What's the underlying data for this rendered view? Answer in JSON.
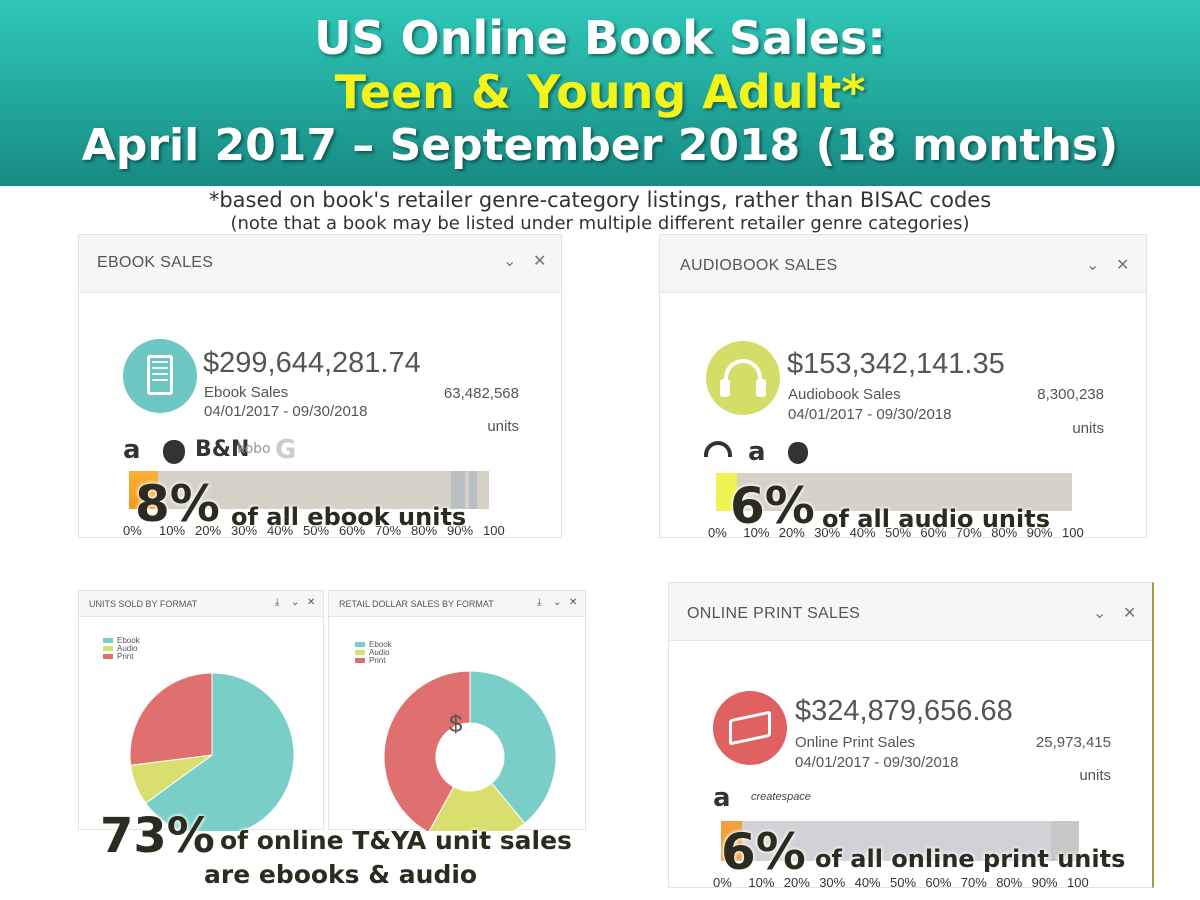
{
  "header": {
    "line1": "US Online Book Sales:",
    "line2": "Teen & Young Adult*",
    "line3": "April 2017 – September 2018 (18 months)",
    "note1": "*based on book's retailer genre-category listings, rather than BISAC codes",
    "note2": "(note that a book may be listed under multiple different retailer genre categories)"
  },
  "colors": {
    "ebook": "#79cec8",
    "audio": "#d9de6f",
    "print": "#e06f6f",
    "accent_yellow": "#f5f41a",
    "banner": "#21a79c"
  },
  "ebook": {
    "title": "EBOOK SALES",
    "amount": "$299,644,281.74",
    "label": "Ebook Sales",
    "dates": "04/01/2017 - 09/30/2018",
    "units": "63,482,568",
    "units_label": "units",
    "retailers": [
      "a",
      "",
      "B&N",
      "kobo",
      "G"
    ],
    "retailer_icons": [
      "amazon-icon",
      "apple-icon",
      "bn-icon",
      "kobo-icon",
      "google-icon"
    ],
    "share_pct": 8,
    "share_text": "of all ebook units",
    "share_big": "8%"
  },
  "audio": {
    "title": "AUDIOBOOK SALES",
    "amount": "$153,342,141.35",
    "label": "Audiobook Sales",
    "dates": "04/01/2017 - 09/30/2018",
    "units": "8,300,238",
    "units_label": "units",
    "retailer_icons": [
      "audible-icon",
      "amazon-icon",
      "apple-icon"
    ],
    "share_pct": 6,
    "share_text": "of all audio units",
    "share_big": "6%"
  },
  "print": {
    "title": "ONLINE PRINT SALES",
    "amount": "$324,879,656.68",
    "label": "Online Print Sales",
    "dates": "04/01/2017 - 09/30/2018",
    "units": "25,973,415",
    "units_label": "units",
    "retailer_icons": [
      "amazon-icon",
      "createspace-icon"
    ],
    "createspace": "createspace",
    "share_pct": 6,
    "share_text": "of all online print units",
    "share_big": "6%"
  },
  "ticks": [
    "0%",
    "10%",
    "20%",
    "30%",
    "40%",
    "50%",
    "60%",
    "70%",
    "80%",
    "90%",
    "100"
  ],
  "pies": {
    "units_title": "UNITS SOLD BY FORMAT",
    "dollars_title": "RETAIL DOLLAR SALES BY FORMAT",
    "dollar_symbol": "$",
    "legend": [
      "Ebook",
      "Audio",
      "Print"
    ],
    "big": "73%",
    "big_text1": "of online T&YA unit sales",
    "big_text2": "are ebooks & audio"
  },
  "chart_data": [
    {
      "type": "pie",
      "title": "UNITS SOLD BY FORMAT",
      "categories": [
        "Ebook",
        "Audio",
        "Print"
      ],
      "values": [
        65,
        8,
        27
      ]
    },
    {
      "type": "pie",
      "title": "RETAIL DOLLAR SALES BY FORMAT",
      "categories": [
        "Ebook",
        "Audio",
        "Print"
      ],
      "values": [
        39,
        19,
        42
      ]
    },
    {
      "type": "bar",
      "title": "EBOOK SALES",
      "categories": [
        "Teen & Young Adult"
      ],
      "values": [
        8
      ],
      "ylim": [
        0,
        100
      ]
    },
    {
      "type": "bar",
      "title": "AUDIOBOOK SALES",
      "categories": [
        "Teen & Young Adult"
      ],
      "values": [
        6
      ],
      "ylim": [
        0,
        100
      ]
    },
    {
      "type": "bar",
      "title": "ONLINE PRINT SALES",
      "categories": [
        "Teen & Young Adult"
      ],
      "values": [
        6
      ],
      "ylim": [
        0,
        100
      ]
    }
  ]
}
